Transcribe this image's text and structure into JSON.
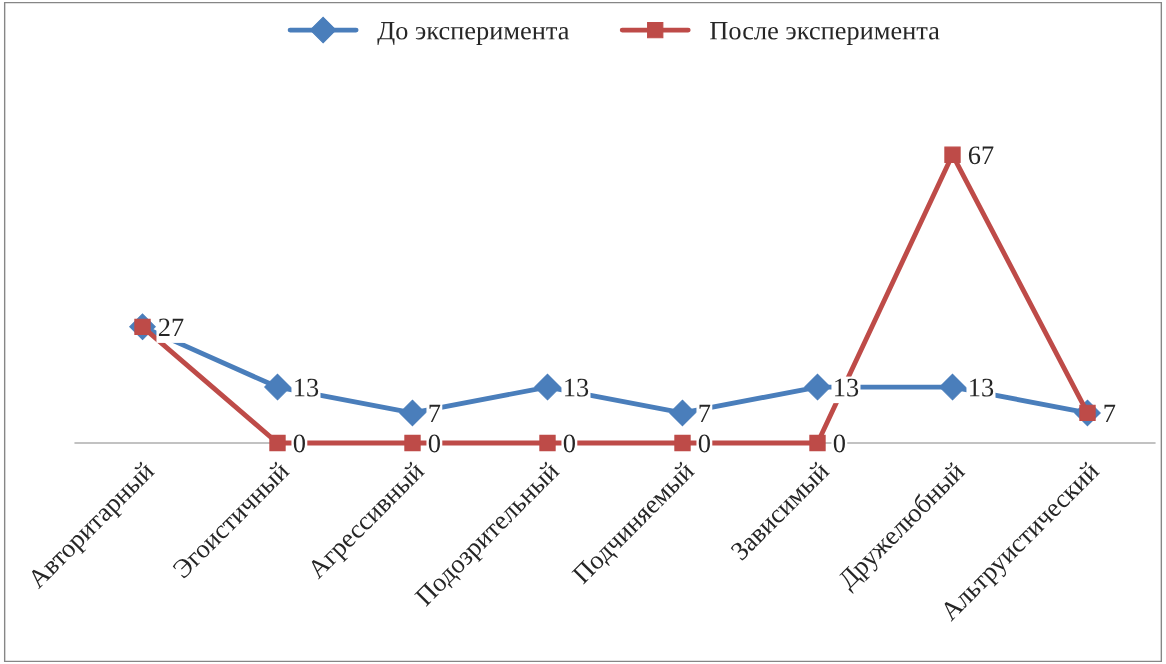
{
  "chart_data": {
    "type": "line",
    "categories": [
      "Авторитарный",
      "Эгоистичный",
      "Агрессивный",
      "Подозрительный",
      "Подчиняемый",
      "Зависимый",
      "Дружелюбный",
      "Альтруистический"
    ],
    "series": [
      {
        "name": "До эксперимента",
        "color": "#4a7ebb",
        "marker": "diamond",
        "values": [
          27,
          13,
          7,
          13,
          7,
          13,
          13,
          7
        ],
        "value_labels": [
          null,
          "13",
          "7",
          "13",
          "7",
          "13",
          "13",
          null
        ]
      },
      {
        "name": "После эксперимента",
        "color": "#be4b48",
        "marker": "square",
        "values": [
          27,
          0,
          0,
          0,
          0,
          0,
          67,
          7
        ],
        "value_labels": [
          "27",
          "0",
          "0",
          "0",
          "0",
          "0",
          "67",
          "7"
        ]
      }
    ],
    "legend": "top",
    "grid": false
  }
}
